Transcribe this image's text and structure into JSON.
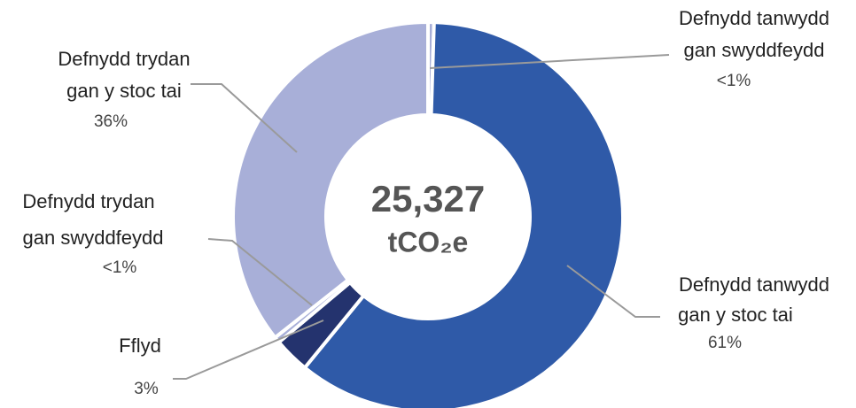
{
  "chart_data": {
    "type": "donut",
    "center_label": "25,327",
    "center_unit": "tCO₂e",
    "categories": [
      [
        "Defnydd tanwydd",
        "gan swyddfeydd"
      ],
      [
        "Defnydd tanwydd",
        "gan y stoc tai"
      ],
      [
        "Fflyd"
      ],
      [
        "Defnydd trydan",
        "gan swyddfeydd"
      ],
      [
        "Defnydd trydan",
        "gan y stoc tai"
      ]
    ],
    "values": [
      0.5,
      61,
      3,
      0.5,
      36
    ],
    "value_labels": [
      "<1%",
      "61%",
      "3%",
      "<1%",
      "36%"
    ],
    "colors": [
      "#a8afd8",
      "#2f5aa8",
      "#24336e",
      "#a8afd8",
      "#a8afd8"
    ]
  }
}
